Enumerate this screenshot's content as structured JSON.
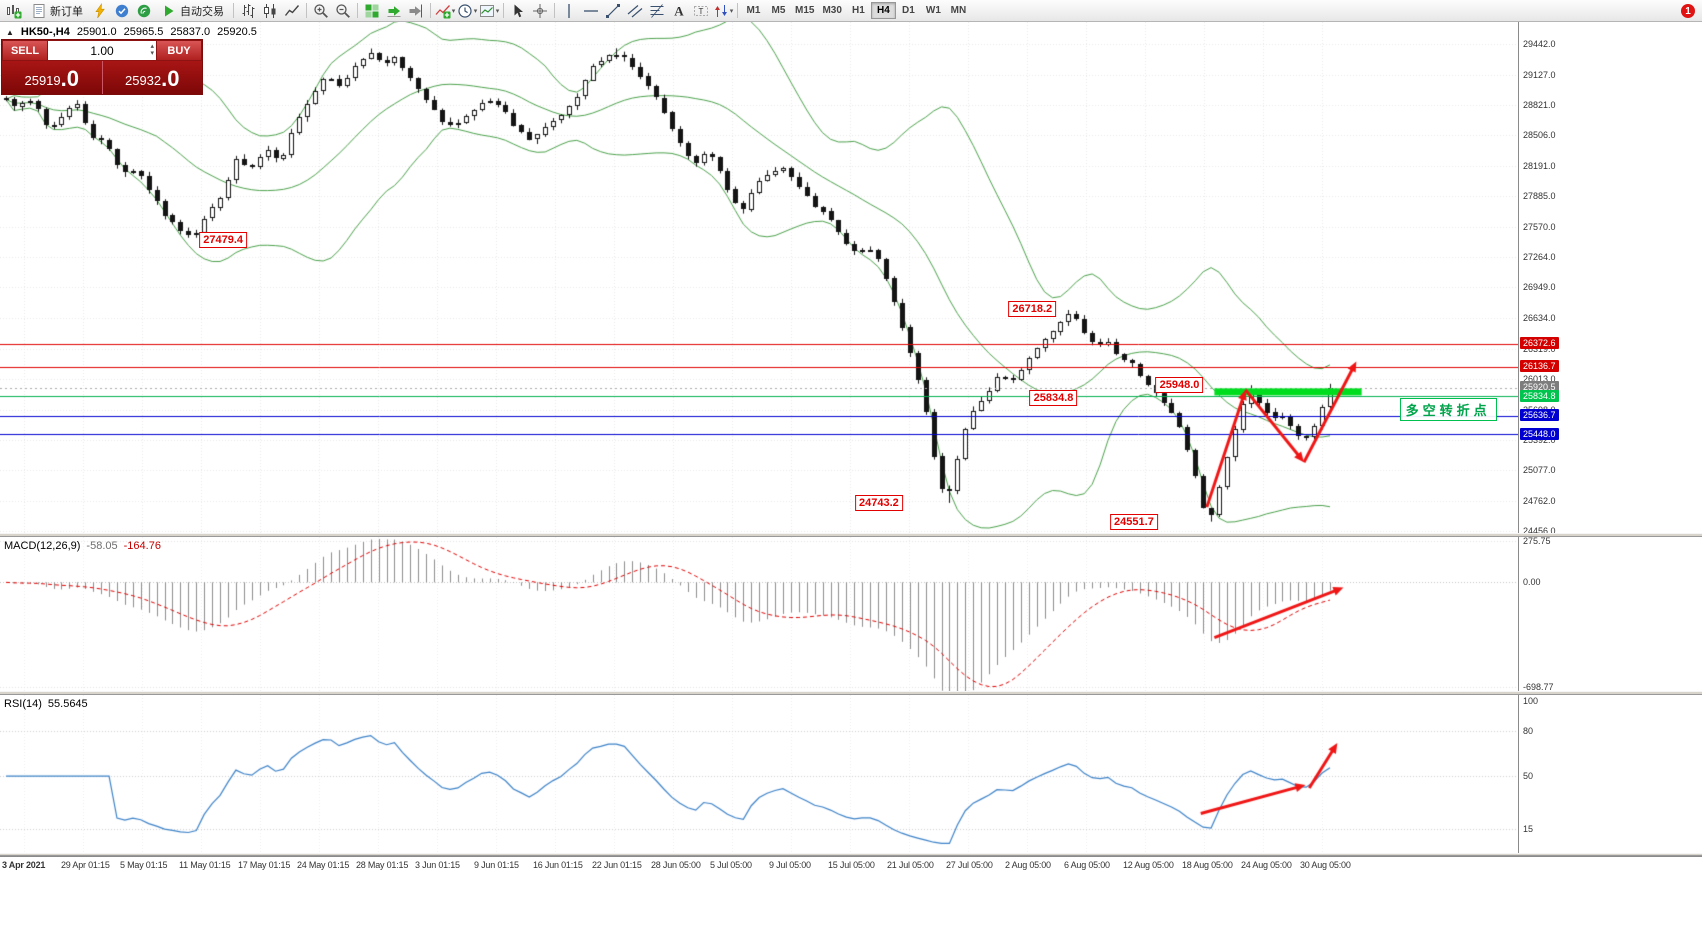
{
  "app": {
    "toolbar": {
      "items": [
        {
          "name": "new-chart",
          "icon": "new-chart"
        },
        {
          "name": "new-order",
          "icon": "doc",
          "label": "新订单"
        },
        {
          "name": "mql5-community",
          "icon": "lightning"
        },
        {
          "name": "market",
          "icon": "market"
        },
        {
          "name": "signals",
          "icon": "signals"
        },
        {
          "name": "auto-trading",
          "icon": "play",
          "label": "自动交易"
        },
        {
          "sep": true
        },
        {
          "name": "bars-chart",
          "icon": "bars"
        },
        {
          "name": "candlestick-chart",
          "icon": "candles"
        },
        {
          "name": "line-chart",
          "icon": "line"
        },
        {
          "sep": true
        },
        {
          "name": "zoom-in",
          "icon": "zoom-in"
        },
        {
          "name": "zoom-out",
          "icon": "zoom-out"
        },
        {
          "sep": true
        },
        {
          "name": "tile-windows",
          "icon": "tiles"
        },
        {
          "name": "auto-scroll",
          "icon": "autoscroll"
        },
        {
          "name": "chart-shift",
          "icon": "shift"
        },
        {
          "sep": true
        },
        {
          "name": "indicators",
          "icon": "indicators",
          "dropdown": true
        },
        {
          "name": "periods",
          "icon": "clock",
          "dropdown": true
        },
        {
          "name": "templates",
          "icon": "template",
          "dropdown": true
        },
        {
          "sep": true
        },
        {
          "name": "cursor",
          "icon": "cursor"
        },
        {
          "name": "crosshair",
          "icon": "crosshair"
        },
        {
          "sep": true
        },
        {
          "name": "vertical-line",
          "icon": "vline"
        },
        {
          "name": "horizontal-line",
          "icon": "hline"
        },
        {
          "name": "trendline",
          "icon": "tline"
        },
        {
          "name": "equidistant-channel",
          "icon": "channel"
        },
        {
          "name": "fibonacci-retracement",
          "icon": "fibo"
        },
        {
          "name": "text",
          "icon": "textA"
        },
        {
          "name": "text-label",
          "icon": "textT"
        },
        {
          "name": "arrows",
          "icon": "arrows",
          "dropdown": true
        },
        {
          "sep": true
        }
      ],
      "timeframes": [
        "M1",
        "M5",
        "M15",
        "M30",
        "H1",
        "H4",
        "D1",
        "W1",
        "MN"
      ],
      "active_timeframe": "H4",
      "notification_count": "1"
    },
    "symbol_info": {
      "symbol": "HK50-,H4",
      "open": "25901.0",
      "high": "25965.5",
      "low": "25837.0",
      "close": "25920.5"
    },
    "trade_panel": {
      "sell_label": "SELL",
      "buy_label": "BUY",
      "volume": "1.00",
      "sell_price_main": "25919",
      "sell_price_frac": ".0",
      "buy_price_main": "25932",
      "buy_price_frac": ".0"
    },
    "macd_label": {
      "name": "MACD(12,26,9)",
      "value1": "-58.05",
      "value2": "-164.76"
    },
    "rsi_label": {
      "name": "RSI(14)",
      "value": "55.5645"
    }
  },
  "chart_data": {
    "type": "candlestick",
    "symbol": "HK50-",
    "timeframe": "H4",
    "x_axis": {
      "labels": [
        "3 Apr 2021",
        "29 Apr 01:15",
        "5 May 01:15",
        "11 May 01:15",
        "17 May 01:15",
        "24 May 01:15",
        "28 May 01:15",
        "3 Jun 01:15",
        "9 Jun 01:15",
        "16 Jun 01:15",
        "22 Jun 01:15",
        "28 Jun 05:00",
        "5 Jul 05:00",
        "9 Jul 05:00",
        "15 Jul 05:00",
        "21 Jul 05:00",
        "27 Jul 05:00",
        "2 Aug 05:00",
        "6 Aug 05:00",
        "12 Aug 05:00",
        "18 Aug 05:00",
        "24 Aug 05:00",
        "30 Aug 05:00"
      ]
    },
    "panes": {
      "main": {
        "ylim": [
          29667,
          24435
        ],
        "axis_ticks": [
          29442,
          29127,
          28821,
          28506,
          28191,
          27885,
          27570,
          27264,
          26949,
          26634,
          26319,
          26013,
          25698,
          25392,
          25077,
          24762,
          24456
        ],
        "candle_count": 168,
        "last_close": 25920.5,
        "bollinger": {
          "period": 20,
          "deviation": 2
        },
        "price_path": [
          [
            0.0,
            28950
          ],
          [
            0.01,
            28800
          ],
          [
            0.022,
            28860
          ],
          [
            0.032,
            28560
          ],
          [
            0.04,
            28700
          ],
          [
            0.05,
            28850
          ],
          [
            0.06,
            28500
          ],
          [
            0.07,
            28420
          ],
          [
            0.08,
            28120
          ],
          [
            0.09,
            28160
          ],
          [
            0.1,
            27900
          ],
          [
            0.11,
            27660
          ],
          [
            0.12,
            27520
          ],
          [
            0.128,
            27480
          ],
          [
            0.136,
            27700
          ],
          [
            0.145,
            27860
          ],
          [
            0.155,
            28260
          ],
          [
            0.165,
            28160
          ],
          [
            0.175,
            28360
          ],
          [
            0.185,
            28220
          ],
          [
            0.195,
            28650
          ],
          [
            0.205,
            28900
          ],
          [
            0.215,
            29140
          ],
          [
            0.225,
            29000
          ],
          [
            0.235,
            29250
          ],
          [
            0.245,
            29360
          ],
          [
            0.252,
            29210
          ],
          [
            0.26,
            29300
          ],
          [
            0.27,
            29100
          ],
          [
            0.28,
            28900
          ],
          [
            0.29,
            28660
          ],
          [
            0.3,
            28600
          ],
          [
            0.31,
            28760
          ],
          [
            0.32,
            28860
          ],
          [
            0.33,
            28800
          ],
          [
            0.34,
            28560
          ],
          [
            0.35,
            28460
          ],
          [
            0.36,
            28600
          ],
          [
            0.37,
            28700
          ],
          [
            0.38,
            28900
          ],
          [
            0.39,
            29200
          ],
          [
            0.4,
            29310
          ],
          [
            0.408,
            29350
          ],
          [
            0.415,
            29250
          ],
          [
            0.422,
            29100
          ],
          [
            0.43,
            28950
          ],
          [
            0.44,
            28650
          ],
          [
            0.45,
            28350
          ],
          [
            0.458,
            28210
          ],
          [
            0.466,
            28350
          ],
          [
            0.474,
            28150
          ],
          [
            0.482,
            27860
          ],
          [
            0.49,
            27760
          ],
          [
            0.498,
            28000
          ],
          [
            0.506,
            28110
          ],
          [
            0.514,
            28200
          ],
          [
            0.522,
            28060
          ],
          [
            0.53,
            27900
          ],
          [
            0.538,
            27760
          ],
          [
            0.546,
            27660
          ],
          [
            0.554,
            27460
          ],
          [
            0.562,
            27310
          ],
          [
            0.57,
            27360
          ],
          [
            0.578,
            27260
          ],
          [
            0.586,
            26950
          ],
          [
            0.594,
            26550
          ],
          [
            0.602,
            26150
          ],
          [
            0.61,
            25650
          ],
          [
            0.618,
            24950
          ],
          [
            0.624,
            24750
          ],
          [
            0.63,
            25150
          ],
          [
            0.636,
            25500
          ],
          [
            0.642,
            25700
          ],
          [
            0.65,
            25860
          ],
          [
            0.658,
            26060
          ],
          [
            0.666,
            25960
          ],
          [
            0.674,
            26150
          ],
          [
            0.682,
            26310
          ],
          [
            0.69,
            26450
          ],
          [
            0.698,
            26600
          ],
          [
            0.706,
            26710
          ],
          [
            0.714,
            26500
          ],
          [
            0.722,
            26360
          ],
          [
            0.73,
            26410
          ],
          [
            0.738,
            26210
          ],
          [
            0.746,
            26150
          ],
          [
            0.754,
            26000
          ],
          [
            0.762,
            25860
          ],
          [
            0.77,
            25700
          ],
          [
            0.778,
            25500
          ],
          [
            0.786,
            25100
          ],
          [
            0.792,
            24700
          ],
          [
            0.797,
            24560
          ],
          [
            0.803,
            24900
          ],
          [
            0.81,
            25300
          ],
          [
            0.817,
            25700
          ],
          [
            0.823,
            25900
          ],
          [
            0.83,
            25750
          ],
          [
            0.837,
            25610
          ],
          [
            0.844,
            25660
          ],
          [
            0.851,
            25500
          ],
          [
            0.858,
            25360
          ],
          [
            0.864,
            25460
          ],
          [
            0.87,
            25700
          ],
          [
            0.875,
            25860
          ],
          [
            0.878,
            25920
          ]
        ],
        "extremes": [
          {
            "x": 0.128,
            "low": 27479.4
          },
          {
            "x": 0.245,
            "high": 29380
          },
          {
            "x": 0.408,
            "high": 29398
          },
          {
            "x": 0.624,
            "low": 24743.2
          },
          {
            "x": 0.706,
            "high": 26718.2
          },
          {
            "x": 0.797,
            "low": 24551.7
          },
          {
            "x": 0.823,
            "high": 25948.0
          }
        ],
        "hlines": [
          {
            "price": 26372.6,
            "color": "#e00000",
            "dash": false,
            "label": "26372.6",
            "bg": "#d40000",
            "fg": "#ffffff"
          },
          {
            "price": 26136.7,
            "color": "#e00000",
            "dash": false,
            "label": "26136.7",
            "bg": "#d40000",
            "fg": "#ffffff"
          },
          {
            "price": 25920.5,
            "color": "#a8a8a8",
            "dash": true,
            "label": "25920.5",
            "bg": "#7d7d7d",
            "fg": "#ffffff"
          },
          {
            "price": 25834.8,
            "color": "#00b050",
            "dash": false,
            "label": "25834.8",
            "bg": "#00c44e",
            "fg": "#ffffff"
          },
          {
            "price": 25636.7,
            "color": "#0000d0",
            "dash": false,
            "label": "25636.7",
            "bg": "#0000d0",
            "fg": "#ffffff"
          },
          {
            "price": 25448.0,
            "color": "#0000d0",
            "dash": false,
            "label": "25448.0",
            "bg": "#0000d0",
            "fg": "#ffffff"
          }
        ],
        "highlight_bar": {
          "x1": 0.8,
          "x2": 0.897,
          "price": 25880,
          "thickness": 7,
          "color": "#00dd1f"
        },
        "annotations": [
          {
            "text": "27479.4",
            "x": 0.147,
            "price": 27440
          },
          {
            "text": "26718.2",
            "x": 0.68,
            "price": 26730
          },
          {
            "text": "25834.8",
            "x": 0.694,
            "price": 25820
          },
          {
            "text": "25948.0",
            "x": 0.777,
            "price": 25950
          },
          {
            "text": "24743.2",
            "x": 0.579,
            "price": 24740
          },
          {
            "text": "24551.7",
            "x": 0.747,
            "price": 24545
          }
        ],
        "note": {
          "text": "多空转折点",
          "x": 0.922,
          "price": 25718
        },
        "arrows": [
          {
            "from": [
              0.795,
              24700
            ],
            "to": [
              0.8205,
              25900
            ]
          },
          {
            "from": [
              0.8205,
              25900
            ],
            "to": [
              0.859,
              25160
            ]
          },
          {
            "from": [
              0.859,
              25160
            ],
            "to": [
              0.8935,
              26190
            ]
          }
        ]
      },
      "macd": {
        "ylim": [
          303,
          -726
        ],
        "params": {
          "fast": 12,
          "slow": 26,
          "signal": 9
        },
        "current_main": -58.05,
        "current_signal": -164.76,
        "axis_ticks": [
          {
            "label": "275.75",
            "v": 275.75
          },
          {
            "label": "0.00",
            "v": 0
          },
          {
            "label": "-698.77",
            "v": -698.77
          }
        ],
        "arrows": [
          {
            "from": [
              0.8,
              -370
            ],
            "to": [
              0.885,
              -35
            ]
          }
        ]
      },
      "rsi": {
        "ylim": [
          104,
          -1.3
        ],
        "params": {
          "period": 14
        },
        "current": 55.5645,
        "axis_ticks": [
          {
            "label": "100",
            "v": 100
          },
          {
            "label": "80",
            "v": 80
          },
          {
            "label": "50",
            "v": 50
          },
          {
            "label": "15",
            "v": 15
          }
        ],
        "levels": [
          80,
          50,
          15
        ],
        "arrows": [
          {
            "from": [
              0.791,
              25
            ],
            "to": [
              0.86,
              44
            ]
          },
          {
            "from": [
              0.8625,
              42
            ],
            "to": [
              0.881,
              72
            ]
          }
        ]
      }
    }
  }
}
